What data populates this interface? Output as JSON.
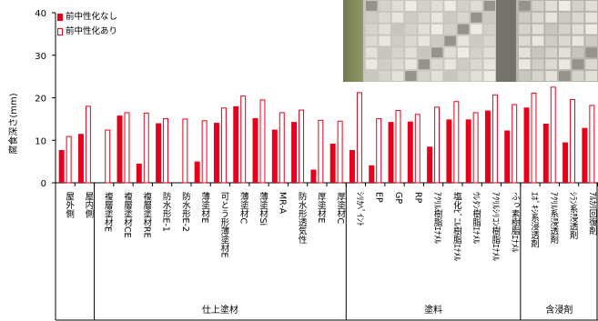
{
  "colors": {
    "series1": "#e8001a",
    "series2": "#e8001a",
    "axis": "#000000"
  },
  "chart_data": {
    "type": "bar",
    "ylabel": "腐食深さ(mm)",
    "ylim": [
      0,
      40
    ],
    "yticks": [
      0,
      10,
      20,
      30,
      40
    ],
    "legend_position": "top-left",
    "categories": [
      "屋外側",
      "屋内側",
      "複層塗材E",
      "複層塗材CE",
      "複層塗材RE",
      "防水形E-1",
      "防水形E-2",
      "薄塗材E",
      "可とう形薄塗材E",
      "薄塗材C",
      "薄塗材Si",
      "MR-A",
      "防水形透気性",
      "厚塗材E",
      "厚塗材C",
      "ｼﾘｶﾍﾟｲﾝﾄ",
      "EP",
      "GP",
      "RP",
      "ｱｸﾘﾙ樹脂ｴﾅﾒﾙ",
      "塩化ﾋﾞﾆﾙ樹脂ｴﾅﾒﾙ",
      "ｳﾚﾀﾝ樹脂ｴﾅﾒﾙ",
      "ｱｸﾘﾙｼﾘｺﾝ樹脂ｴﾅﾒﾙ",
      "ふっ素樹脂ｴﾅﾒﾙ",
      "ｴﾎﾟｷｼ系浸透剤",
      "ｱｸﾘﾙ系浸透剤",
      "ｼﾗﾝ系浸透剤",
      "ｱﾙｶﾘ回復剤"
    ],
    "series": [
      {
        "name": "前中性化なし",
        "style": "filled",
        "values": [
          7.7,
          11.5,
          0,
          15.8,
          4.5,
          14.0,
          0,
          5.0,
          14.1,
          18.0,
          15.2,
          12.5,
          14.3,
          3.1,
          9.2,
          7.7,
          4.1,
          14.3,
          14.4,
          8.5,
          14.9,
          14.9,
          17.0,
          12.3,
          17.7,
          13.9,
          9.5,
          12.9
        ]
      },
      {
        "name": "前中性化あり",
        "style": "outline",
        "values": [
          11.0,
          18.1,
          12.5,
          16.6,
          16.5,
          15.2,
          15.1,
          14.7,
          17.7,
          20.5,
          19.6,
          16.6,
          17.2,
          14.8,
          14.6,
          21.3,
          15.2,
          17.1,
          16.2,
          17.9,
          19.2,
          16.6,
          20.8,
          18.5,
          21.2,
          22.6,
          19.7,
          18.3
        ]
      }
    ],
    "groups": [
      {
        "label": "仕上塗材",
        "start": 2,
        "end": 14
      },
      {
        "label": "塗料",
        "start": 15,
        "end": 23
      },
      {
        "label": "含浸剤",
        "start": 24,
        "end": 27
      }
    ]
  }
}
